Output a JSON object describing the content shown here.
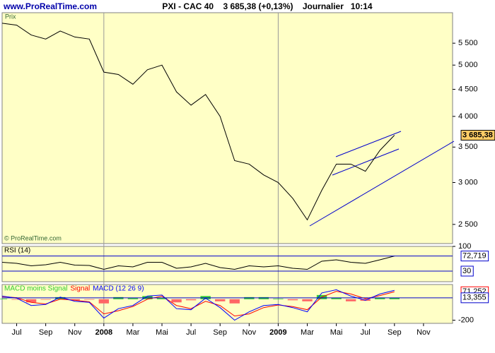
{
  "header": {
    "site": "www.ProRealTime.com",
    "title": "PXI - CAC 40    3 685,38 (+0,13%)    Journalier   10:14"
  },
  "chart_data": [
    {
      "type": "line",
      "label": "Prix",
      "credit": "© ProRealTime.com",
      "log": true,
      "x": [
        "2007-06",
        "2007-07",
        "2007-08",
        "2007-09",
        "2007-10",
        "2007-11",
        "2007-12",
        "2008-01",
        "2008-02",
        "2008-03",
        "2008-04",
        "2008-05",
        "2008-06",
        "2008-07",
        "2008-08",
        "2008-09",
        "2008-10",
        "2008-11",
        "2008-12",
        "2009-01",
        "2009-02",
        "2009-03",
        "2009-04",
        "2009-05",
        "2009-06",
        "2009-07",
        "2009-08",
        "2009-09"
      ],
      "series": [
        {
          "name": "Prix",
          "color": "#000000",
          "values": [
            6000,
            5950,
            5700,
            5600,
            5800,
            5650,
            5600,
            4850,
            4800,
            4600,
            4900,
            5000,
            4450,
            4200,
            4400,
            4000,
            3300,
            3250,
            3100,
            3000,
            2800,
            2550,
            2900,
            3250,
            3250,
            3150,
            3450,
            3685.38
          ]
        }
      ],
      "last_value": {
        "value": 3685.38,
        "label": "3 685,38"
      },
      "xlim": [
        "2007-06",
        "2010-01"
      ],
      "xticks": [
        {
          "value": "2007-07",
          "label": "Jul"
        },
        {
          "value": "2007-09",
          "label": "Sep"
        },
        {
          "value": "2007-11",
          "label": "Nov"
        },
        {
          "value": "2008-01",
          "label": "2008"
        },
        {
          "value": "2008-03",
          "label": "Mar"
        },
        {
          "value": "2008-05",
          "label": "Mai"
        },
        {
          "value": "2008-07",
          "label": "Jul"
        },
        {
          "value": "2008-09",
          "label": "Sep"
        },
        {
          "value": "2008-11",
          "label": "Nov"
        },
        {
          "value": "2009-01",
          "label": "2009"
        },
        {
          "value": "2009-03",
          "label": "Mar"
        },
        {
          "value": "2009-05",
          "label": "Mai"
        },
        {
          "value": "2009-07",
          "label": "Jul"
        },
        {
          "value": "2009-09",
          "label": "Sep"
        },
        {
          "value": "2009-11",
          "label": "Nov"
        }
      ],
      "ylim": [
        2300,
        6280
      ],
      "yticks": [
        {
          "value": 2500,
          "label": "2 500"
        },
        {
          "value": 3000,
          "label": "3 000"
        },
        {
          "value": 3500,
          "label": "3 500"
        },
        {
          "value": 4000,
          "label": "4 000"
        },
        {
          "value": 4500,
          "label": "4 500"
        },
        {
          "value": 5000,
          "label": "5 000"
        },
        {
          "value": 5500,
          "label": "5 500"
        }
      ]
    },
    {
      "type": "line",
      "x": [
        "2007-06",
        "2007-07",
        "2007-08",
        "2007-09",
        "2007-10",
        "2007-11",
        "2007-12",
        "2008-01",
        "2008-02",
        "2008-03",
        "2008-04",
        "2008-05",
        "2008-06",
        "2008-07",
        "2008-08",
        "2008-09",
        "2008-10",
        "2008-11",
        "2008-12",
        "2009-01",
        "2009-02",
        "2009-03",
        "2009-04",
        "2009-05",
        "2009-06",
        "2009-07",
        "2009-08",
        "2009-09"
      ],
      "series": [
        {
          "name": "RSI (14)",
          "color": "#000000",
          "values": [
            55,
            52,
            45,
            48,
            55,
            47,
            46,
            35,
            45,
            42,
            55,
            55,
            38,
            42,
            52,
            40,
            35,
            45,
            42,
            45,
            38,
            35,
            58,
            62,
            55,
            52,
            62,
            72.719
          ]
        }
      ],
      "levels": [
        {
          "value": 72.719,
          "label": "72,719"
        },
        30
      ],
      "level_color": "#0000cc",
      "ylim": [
        0,
        100
      ],
      "yticks": [
        100
      ]
    },
    {
      "type": "macd",
      "x": [
        "2007-06",
        "2007-07",
        "2007-08",
        "2007-09",
        "2007-10",
        "2007-11",
        "2007-12",
        "2008-01",
        "2008-02",
        "2008-03",
        "2008-04",
        "2008-05",
        "2008-06",
        "2008-07",
        "2008-08",
        "2008-09",
        "2008-10",
        "2008-11",
        "2008-12",
        "2009-01",
        "2009-02",
        "2009-03",
        "2009-04",
        "2009-05",
        "2009-06",
        "2009-07",
        "2009-08",
        "2009-09"
      ],
      "series": [
        {
          "name": "MACD moins Signal",
          "kind": "bar",
          "color": "#33cc33",
          "negative_color": "#ff6666",
          "values": [
            5,
            -5,
            -30,
            -5,
            20,
            -10,
            -5,
            -40,
            20,
            10,
            30,
            10,
            -30,
            -10,
            30,
            -20,
            -40,
            20,
            20,
            5,
            -10,
            -20,
            40,
            15,
            -20,
            -15,
            15,
            13.355
          ]
        },
        {
          "name": "Signal",
          "kind": "line",
          "color": "#ff0000",
          "values": [
            25,
            15,
            -30,
            -45,
            0,
            -10,
            -25,
            -140,
            -110,
            -70,
            0,
            30,
            -60,
            -90,
            -20,
            -60,
            -160,
            -140,
            -80,
            -55,
            -70,
            -100,
            20,
            75,
            50,
            5,
            35,
            71.252
          ]
        },
        {
          "name": "MACD (12 26 9)",
          "kind": "line",
          "color": "#0000ff",
          "values": [
            30,
            10,
            -60,
            -50,
            20,
            -20,
            -30,
            -180,
            -90,
            -60,
            30,
            40,
            -90,
            -100,
            10,
            -80,
            -200,
            -120,
            -60,
            -50,
            -80,
            -120,
            60,
            90,
            30,
            -10,
            50,
            84.607
          ]
        }
      ],
      "markers": [
        {
          "value": 71.252,
          "label": "71,252",
          "color": "#ff0000"
        },
        {
          "value": 13.355,
          "label": "13,355",
          "color": "#0000cc",
          "line": true
        }
      ],
      "ylim": [
        -230,
        140
      ],
      "yticks": [
        -200
      ]
    }
  ]
}
